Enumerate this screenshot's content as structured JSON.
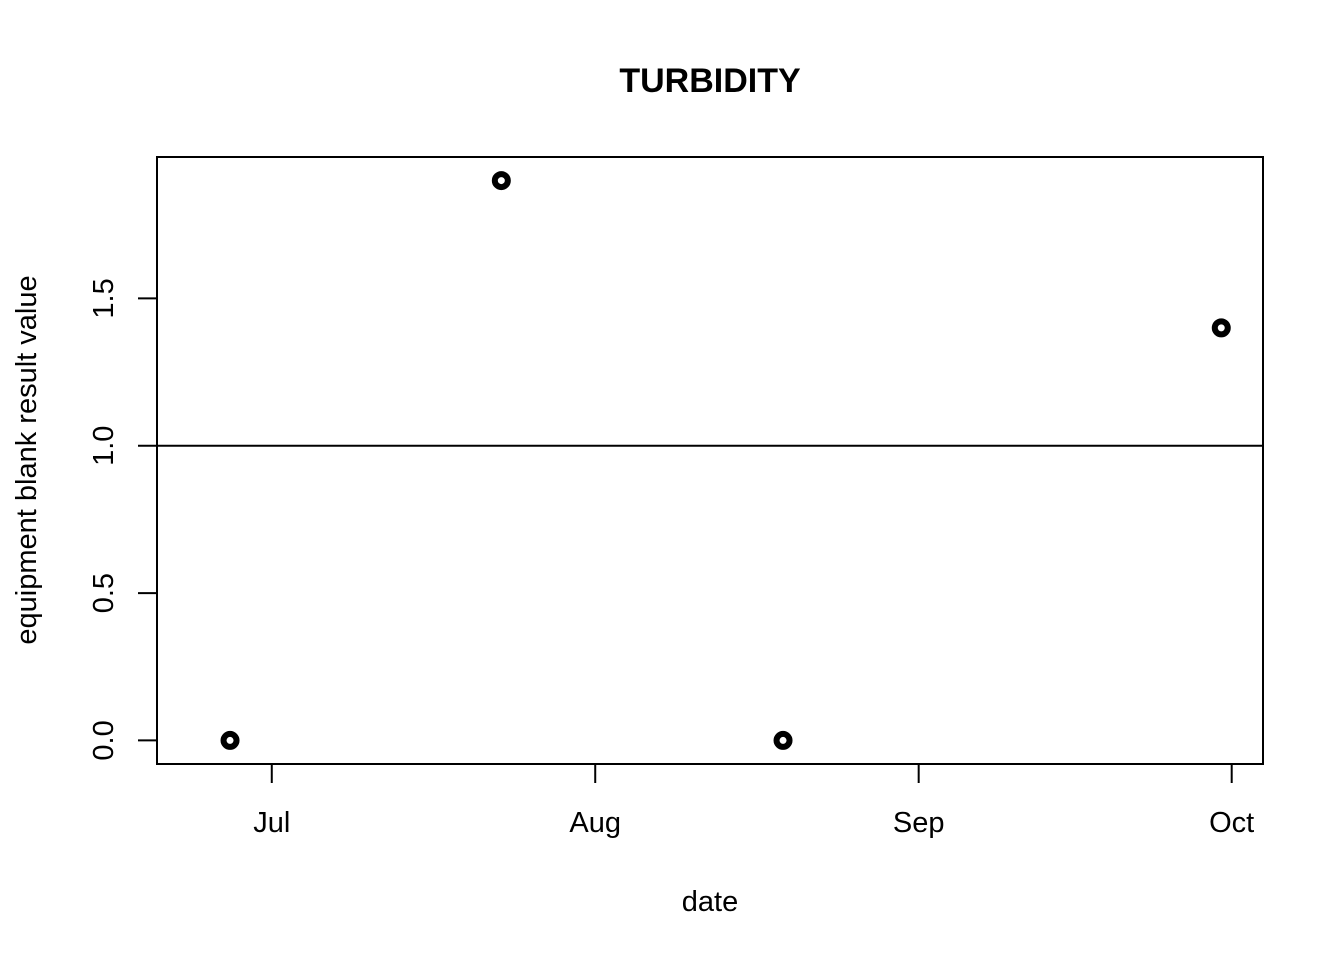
{
  "chart_data": {
    "type": "scatter",
    "title": "TURBIDITY",
    "xlabel": "date",
    "ylabel": "equipment blank result value",
    "x_axis": {
      "type": "date",
      "ticks": [
        {
          "date": "2019-07-01",
          "label": "Jul"
        },
        {
          "date": "2019-08-01",
          "label": "Aug"
        },
        {
          "date": "2019-09-01",
          "label": "Sep"
        },
        {
          "date": "2019-10-01",
          "label": "Oct"
        }
      ],
      "range": [
        "2019-06-20",
        "2019-10-04"
      ]
    },
    "y_axis": {
      "ticks": [
        {
          "value": 0.0,
          "label": "0.0"
        },
        {
          "value": 0.5,
          "label": "0.5"
        },
        {
          "value": 1.0,
          "label": "1.0"
        },
        {
          "value": 1.5,
          "label": "1.5"
        }
      ],
      "ylim": [
        -0.08,
        1.98
      ]
    },
    "points": [
      {
        "x": "2019-06-27",
        "y": 0.0
      },
      {
        "x": "2019-07-23",
        "y": 1.9
      },
      {
        "x": "2019-08-19",
        "y": 0.0
      },
      {
        "x": "2019-09-30",
        "y": 1.4
      }
    ],
    "reference_line": {
      "y": 1.0,
      "orientation": "horizontal"
    },
    "grid": false,
    "legend": "none",
    "colors": {
      "foreground": "#000000",
      "background": "#ffffff"
    }
  }
}
